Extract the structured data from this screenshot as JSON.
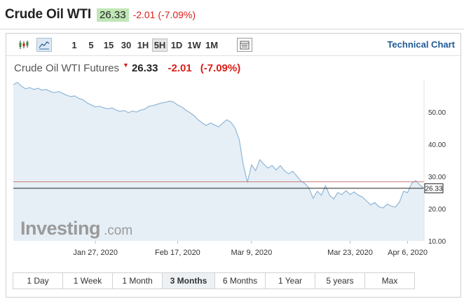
{
  "header": {
    "title": "Crude Oil WTI",
    "price": "26.33",
    "change": "-2.01 (-7.09%)"
  },
  "toolbar": {
    "chart_type_icons": [
      {
        "name": "candlestick-icon",
        "active": false
      },
      {
        "name": "area-chart-icon",
        "active": true
      }
    ],
    "intervals": [
      {
        "label": "1",
        "active": false
      },
      {
        "label": "5",
        "active": false
      },
      {
        "label": "15",
        "active": false
      },
      {
        "label": "30",
        "active": false
      },
      {
        "label": "1H",
        "active": false
      },
      {
        "label": "5H",
        "active": true
      },
      {
        "label": "1D",
        "active": false
      },
      {
        "label": "1W",
        "active": false
      },
      {
        "label": "1M",
        "active": false
      }
    ],
    "settings_icon": "table-icon",
    "technical_chart_label": "Technical Chart"
  },
  "legend": {
    "name": "Crude Oil WTI Futures",
    "price": "26.33",
    "change": "-2.01",
    "change_pct": "(-7.09%)"
  },
  "watermark": {
    "brand": "Investing",
    "suffix": ".com"
  },
  "colors": {
    "line": "#8fb6d6",
    "fill": "#e6eff6",
    "prev_close_line": "#c97b7b",
    "current_line": "#222222",
    "negative": "#d91e18",
    "badge": "#bfe6b4",
    "link": "#1f5a96"
  },
  "chart_data": {
    "type": "area",
    "series": [
      {
        "values": [
          58.5,
          59.2,
          58.0,
          57.2,
          57.6,
          57.0,
          57.4,
          56.8,
          57.0,
          56.4,
          56.0,
          56.4,
          55.8,
          55.2,
          54.8,
          55.0,
          54.2,
          53.8,
          52.8,
          52.2,
          51.6,
          51.8,
          51.3,
          51.0,
          51.3,
          50.6,
          50.2,
          50.5,
          49.8,
          50.3,
          50.0,
          50.6,
          50.9,
          51.8,
          52.0,
          52.4,
          52.8,
          53.0,
          53.4,
          53.1,
          52.2,
          51.6,
          50.6,
          49.8,
          48.9,
          47.6,
          46.6,
          45.8,
          46.6,
          46.0,
          45.4,
          46.6,
          47.6,
          46.8,
          45.0,
          41.5,
          33.5,
          28.2,
          33.6,
          31.8,
          35.2,
          33.8,
          32.6,
          33.4,
          32.0,
          33.4,
          31.8,
          30.8,
          31.6,
          30.2,
          28.6,
          27.8,
          26.4,
          23.2,
          25.4,
          24.2,
          27.1,
          24.2,
          23.0,
          25.0,
          24.4,
          25.6,
          24.4,
          25.2,
          24.2,
          23.6,
          22.4,
          21.2,
          21.9,
          20.6,
          20.2,
          21.4,
          20.8,
          20.5,
          22.0,
          25.4,
          25.0,
          27.9,
          28.7,
          27.3,
          26.33
        ]
      }
    ],
    "x_tick_labels": [
      "Jan 27, 2020",
      "Feb 17, 2020",
      "Mar 9, 2020",
      "Mar 23, 2020",
      "Apr 6, 2020"
    ],
    "x_tick_index": [
      20,
      40,
      58,
      82,
      96
    ],
    "y_ticks": [
      10,
      20,
      30,
      40,
      50
    ],
    "y_tick_labels": [
      "10.00",
      "20.00",
      "30.00",
      "40.00",
      "50.00"
    ],
    "ylim": [
      10,
      60
    ],
    "prev_close": 28.34,
    "current_value": 26.33,
    "current_label": "26.33",
    "grid": false
  },
  "ranges": [
    {
      "label": "1 Day",
      "active": false
    },
    {
      "label": "1 Week",
      "active": false
    },
    {
      "label": "1 Month",
      "active": false
    },
    {
      "label": "3 Months",
      "active": true
    },
    {
      "label": "6 Months",
      "active": false
    },
    {
      "label": "1 Year",
      "active": false
    },
    {
      "label": "5 years",
      "active": false
    },
    {
      "label": "Max",
      "active": false
    }
  ]
}
